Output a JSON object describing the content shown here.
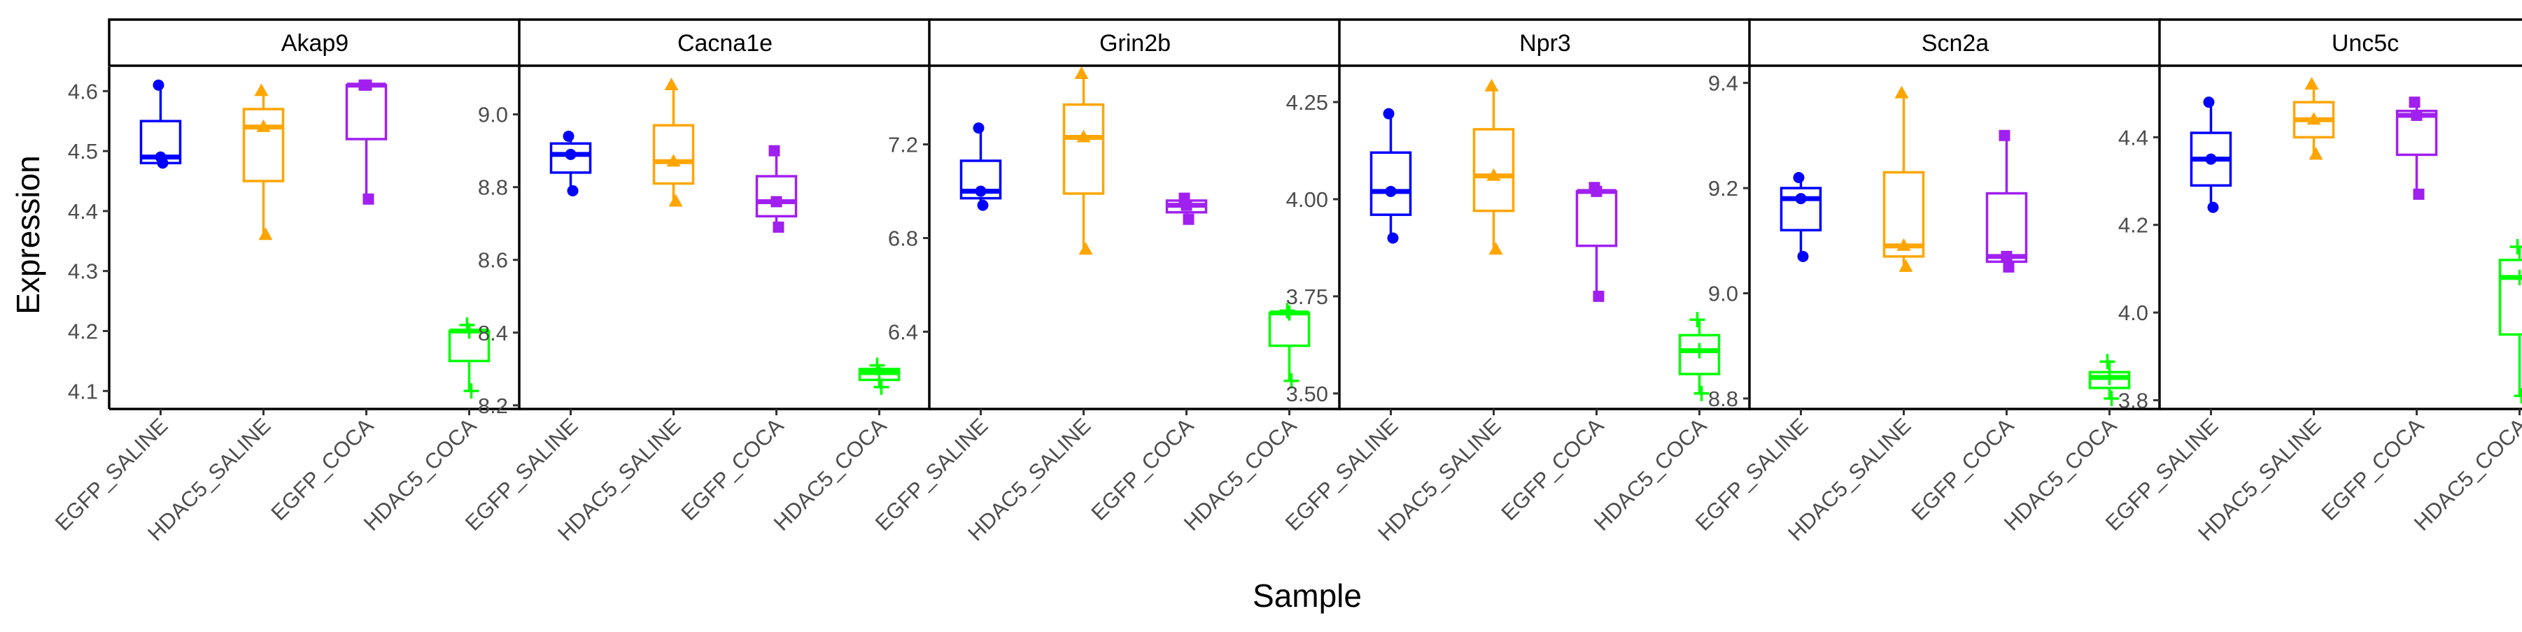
{
  "colors": {
    "EGFP_SALINE": "#0000ff",
    "HDAC5_SALINE": "#ffa500",
    "EGFP_COCA": "#a020f0",
    "HDAC5_COCA": "#00ff00"
  },
  "chart_data": {
    "type": "boxplot",
    "xlabel": "Sample",
    "ylabel": "Expression",
    "categories": [
      "EGFP_SALINE",
      "HDAC5_SALINE",
      "EGFP_COCA",
      "HDAC5_COCA"
    ],
    "marker_shapes": [
      "circle",
      "triangle",
      "square",
      "plus"
    ],
    "legend": "none",
    "grid": false,
    "panels": [
      {
        "title": "Akap9",
        "ylim": [
          4.07,
          4.64
        ],
        "ticks": [
          4.1,
          4.2,
          4.3,
          4.4,
          4.5,
          4.6
        ],
        "tick_labels": [
          "4.1",
          "4.2",
          "4.3",
          "4.4",
          "4.5",
          "4.6"
        ],
        "boxes": [
          {
            "min": 4.48,
            "q1": 4.48,
            "median": 4.49,
            "q3": 4.55,
            "max": 4.61
          },
          {
            "min": 4.36,
            "q1": 4.45,
            "median": 4.54,
            "q3": 4.57,
            "max": 4.6
          },
          {
            "min": 4.42,
            "q1": 4.52,
            "median": 4.61,
            "q3": 4.61,
            "max": 4.61
          },
          {
            "min": 4.1,
            "q1": 4.15,
            "median": 4.2,
            "q3": 4.2,
            "max": 4.21
          }
        ],
        "points": [
          [
            4.61,
            4.49,
            4.48
          ],
          [
            4.6,
            4.54,
            4.36
          ],
          [
            4.61,
            4.61,
            4.42
          ],
          [
            4.21,
            4.2,
            4.1
          ]
        ]
      },
      {
        "title": "Cacna1e",
        "ylim": [
          8.19,
          9.13
        ],
        "ticks": [
          8.2,
          8.4,
          8.6,
          8.8,
          9.0
        ],
        "tick_labels": [
          "8.2",
          "8.4",
          "8.6",
          "8.8",
          "9.0"
        ],
        "boxes": [
          {
            "min": 8.79,
            "q1": 8.84,
            "median": 8.89,
            "q3": 8.92,
            "max": 8.94
          },
          {
            "min": 8.76,
            "q1": 8.81,
            "median": 8.87,
            "q3": 8.97,
            "max": 9.08
          },
          {
            "min": 8.69,
            "q1": 8.72,
            "median": 8.76,
            "q3": 8.83,
            "max": 8.9
          },
          {
            "min": 8.25,
            "q1": 8.27,
            "median": 8.29,
            "q3": 8.3,
            "max": 8.31
          }
        ],
        "points": [
          [
            8.94,
            8.89,
            8.79
          ],
          [
            9.08,
            8.87,
            8.76
          ],
          [
            8.9,
            8.76,
            8.69
          ],
          [
            8.31,
            8.29,
            8.25
          ]
        ]
      },
      {
        "title": "Grin2b",
        "ylim": [
          6.07,
          7.53
        ],
        "ticks": [
          6.4,
          6.8,
          7.2
        ],
        "tick_labels": [
          "6.4",
          "6.8",
          "7.2"
        ],
        "boxes": [
          {
            "min": 6.94,
            "q1": 6.97,
            "median": 7.0,
            "q3": 7.13,
            "max": 7.27
          },
          {
            "min": 6.75,
            "q1": 6.99,
            "median": 7.23,
            "q3": 7.37,
            "max": 7.5
          },
          {
            "min": 6.88,
            "q1": 6.91,
            "median": 6.94,
            "q3": 6.96,
            "max": 6.97
          },
          {
            "min": 6.19,
            "q1": 6.34,
            "median": 6.48,
            "q3": 6.48,
            "max": 6.49
          }
        ],
        "points": [
          [
            7.27,
            7.0,
            6.94
          ],
          [
            7.5,
            7.23,
            6.75
          ],
          [
            6.97,
            6.94,
            6.88
          ],
          [
            6.49,
            6.48,
            6.19
          ]
        ]
      },
      {
        "title": "Npr3",
        "ylim": [
          3.46,
          4.34
        ],
        "ticks": [
          3.5,
          3.75,
          4.0,
          4.25
        ],
        "tick_labels": [
          "3.50",
          "3.75",
          "4.00",
          "4.25"
        ],
        "boxes": [
          {
            "min": 3.9,
            "q1": 3.96,
            "median": 4.02,
            "q3": 4.12,
            "max": 4.22
          },
          {
            "min": 3.87,
            "q1": 3.97,
            "median": 4.06,
            "q3": 4.18,
            "max": 4.29
          },
          {
            "min": 3.75,
            "q1": 3.88,
            "median": 4.02,
            "q3": 4.02,
            "max": 4.03
          },
          {
            "min": 3.5,
            "q1": 3.55,
            "median": 3.61,
            "q3": 3.65,
            "max": 3.69
          }
        ],
        "points": [
          [
            4.22,
            4.02,
            3.9
          ],
          [
            4.29,
            4.06,
            3.87
          ],
          [
            4.03,
            4.02,
            3.75
          ],
          [
            3.69,
            3.61,
            3.5
          ]
        ]
      },
      {
        "title": "Scn2a",
        "ylim": [
          8.78,
          9.43
        ],
        "ticks": [
          8.8,
          9.0,
          9.2,
          9.4
        ],
        "tick_labels": [
          "8.8",
          "9.0",
          "9.2",
          "9.4"
        ],
        "boxes": [
          {
            "min": 9.07,
            "q1": 9.12,
            "median": 9.18,
            "q3": 9.2,
            "max": 9.22
          },
          {
            "min": 9.05,
            "q1": 9.07,
            "median": 9.09,
            "q3": 9.23,
            "max": 9.38
          },
          {
            "min": 9.05,
            "q1": 9.06,
            "median": 9.07,
            "q3": 9.19,
            "max": 9.3
          },
          {
            "min": 8.8,
            "q1": 8.82,
            "median": 8.84,
            "q3": 8.85,
            "max": 8.87
          }
        ],
        "points": [
          [
            9.22,
            9.18,
            9.07
          ],
          [
            9.38,
            9.09,
            9.05
          ],
          [
            9.3,
            9.07,
            9.05
          ],
          [
            8.87,
            8.84,
            8.8
          ]
        ]
      },
      {
        "title": "Unc5c",
        "ylim": [
          3.78,
          4.56
        ],
        "ticks": [
          3.8,
          4.0,
          4.2,
          4.4
        ],
        "tick_labels": [
          "3.8",
          "4.0",
          "4.2",
          "4.4"
        ],
        "boxes": [
          {
            "min": 4.24,
            "q1": 4.29,
            "median": 4.35,
            "q3": 4.41,
            "max": 4.48
          },
          {
            "min": 4.36,
            "q1": 4.4,
            "median": 4.44,
            "q3": 4.48,
            "max": 4.52
          },
          {
            "min": 4.27,
            "q1": 4.36,
            "median": 4.45,
            "q3": 4.46,
            "max": 4.48
          },
          {
            "min": 3.81,
            "q1": 3.95,
            "median": 4.08,
            "q3": 4.12,
            "max": 4.15
          }
        ],
        "points": [
          [
            4.48,
            4.35,
            4.24
          ],
          [
            4.52,
            4.44,
            4.36
          ],
          [
            4.48,
            4.45,
            4.27
          ],
          [
            4.15,
            4.08,
            3.81
          ]
        ]
      }
    ]
  }
}
